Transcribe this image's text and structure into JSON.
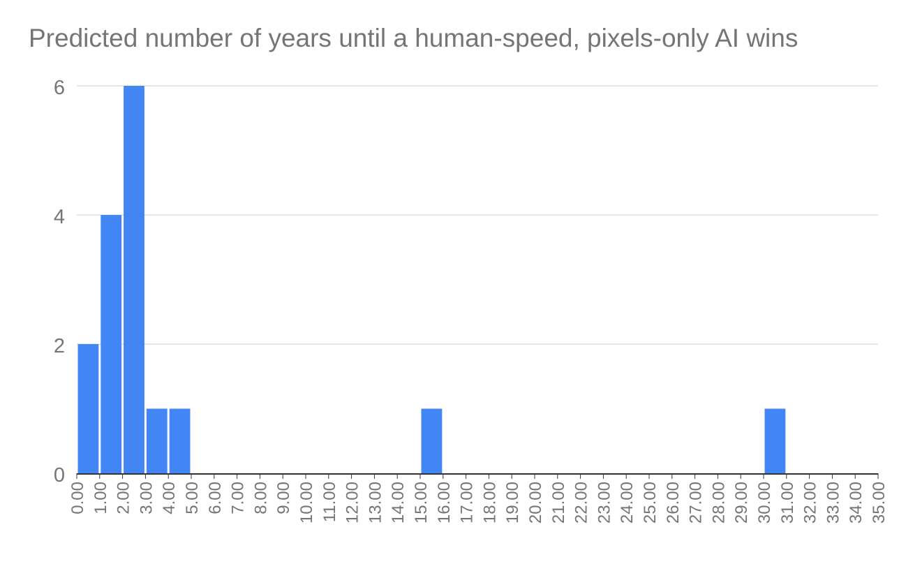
{
  "chart_data": {
    "type": "bar",
    "title": "Predicted number of years until a human-speed, pixels-only AI wins",
    "xlabel": "",
    "ylabel": "",
    "categories": [
      "0.00",
      "1.00",
      "2.00",
      "3.00",
      "4.00",
      "5.00",
      "6.00",
      "7.00",
      "8.00",
      "9.00",
      "10.00",
      "11.00",
      "12.00",
      "13.00",
      "14.00",
      "15.00",
      "16.00",
      "17.00",
      "18.00",
      "19.00",
      "20.00",
      "21.00",
      "22.00",
      "23.00",
      "24.00",
      "25.00",
      "26.00",
      "27.00",
      "28.00",
      "29.00",
      "30.00",
      "31.00",
      "32.00",
      "33.00",
      "34.00",
      "35.00"
    ],
    "bins": [
      {
        "from": 0,
        "to": 1,
        "count": 2
      },
      {
        "from": 1,
        "to": 2,
        "count": 4
      },
      {
        "from": 2,
        "to": 3,
        "count": 6
      },
      {
        "from": 3,
        "to": 4,
        "count": 1
      },
      {
        "from": 4,
        "to": 5,
        "count": 1
      },
      {
        "from": 15,
        "to": 16,
        "count": 1
      },
      {
        "from": 30,
        "to": 31,
        "count": 1
      }
    ],
    "xlim": [
      0,
      35
    ],
    "ylim": [
      0,
      6
    ],
    "yticks": [
      "0",
      "2",
      "4",
      "6"
    ],
    "grid": true,
    "bar_color": "#4285f4",
    "gridline_color": "#cccccc",
    "axis_color": "#333333",
    "text_color": "#757575"
  }
}
